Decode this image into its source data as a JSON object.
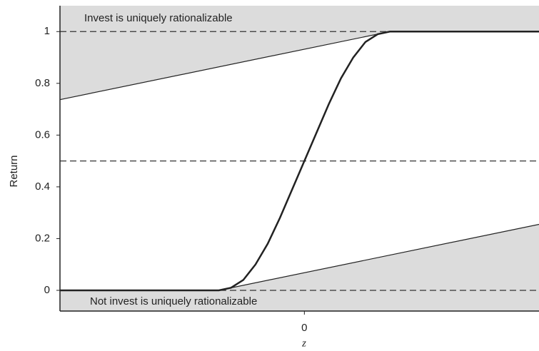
{
  "chart_data": {
    "type": "line",
    "y_label": "Return",
    "x_label": "z",
    "annotations": [
      "Invest is uniquely rationalizable",
      "Not invest is uniquely rationalizable"
    ],
    "xlim": [
      -1,
      0.96
    ],
    "ylim": [
      -0.08,
      1.1
    ],
    "xticks": [
      0
    ],
    "yticks": [
      0,
      0.2,
      0.4,
      0.6,
      0.8,
      1
    ],
    "hlines": [
      0,
      0.5,
      1
    ],
    "series": [
      {
        "color": "#222222",
        "width": 2.5,
        "x": [
          -1,
          -0.35,
          -0.3,
          -0.25,
          -0.2,
          -0.15,
          -0.1,
          -0.05,
          0,
          0.05,
          0.1,
          0.15,
          0.2,
          0.25,
          0.3,
          0.35,
          0.96
        ],
        "values": [
          0,
          0,
          0.01,
          0.04,
          0.1,
          0.18,
          0.28,
          0.39,
          0.5,
          0.61,
          0.72,
          0.82,
          0.9,
          0.96,
          0.99,
          1,
          1
        ]
      },
      {
        "color": "#222222",
        "width": 1.2,
        "fill": "above",
        "fill_color": "#dcdcdc",
        "x": [
          -1,
          0.35,
          0.96
        ],
        "values": [
          0.737,
          1,
          1
        ]
      },
      {
        "color": "#222222",
        "width": 1.2,
        "fill": "below",
        "fill_color": "#dcdcdc",
        "x": [
          -1,
          -0.35,
          0.96
        ],
        "values": [
          0,
          0,
          0.255
        ]
      }
    ]
  }
}
